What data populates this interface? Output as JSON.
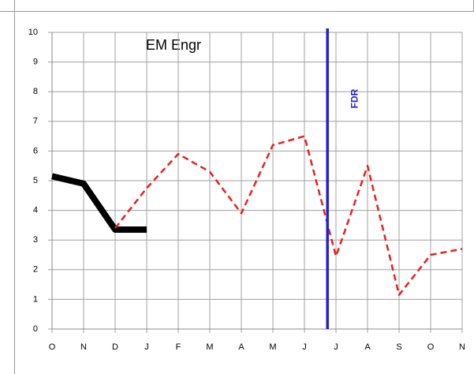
{
  "chart_data": {
    "type": "line",
    "title": "EM Engr",
    "categories": [
      "O",
      "N",
      "D",
      "J",
      "F",
      "M",
      "A",
      "M",
      "J",
      "J",
      "A",
      "S",
      "O",
      "N"
    ],
    "series": [
      {
        "color": "#000000",
        "style": "solid",
        "values": [
          5.15,
          4.9,
          3.35,
          3.35,
          null,
          null,
          null,
          null,
          null,
          null,
          null,
          null,
          null,
          null
        ]
      },
      {
        "color": "#e8211b",
        "style": "dashed",
        "values": [
          null,
          null,
          3.4,
          4.75,
          5.9,
          5.3,
          3.9,
          6.2,
          6.5,
          2.45,
          5.5,
          1.15,
          2.5,
          2.7
        ]
      }
    ],
    "marker": {
      "label": "FDR",
      "x": 8.73,
      "color": "#2222cc"
    },
    "ylim": [
      0,
      10
    ],
    "yticks": [
      0,
      1,
      2,
      3,
      4,
      5,
      6,
      7,
      8,
      9,
      10
    ],
    "grid": true
  }
}
